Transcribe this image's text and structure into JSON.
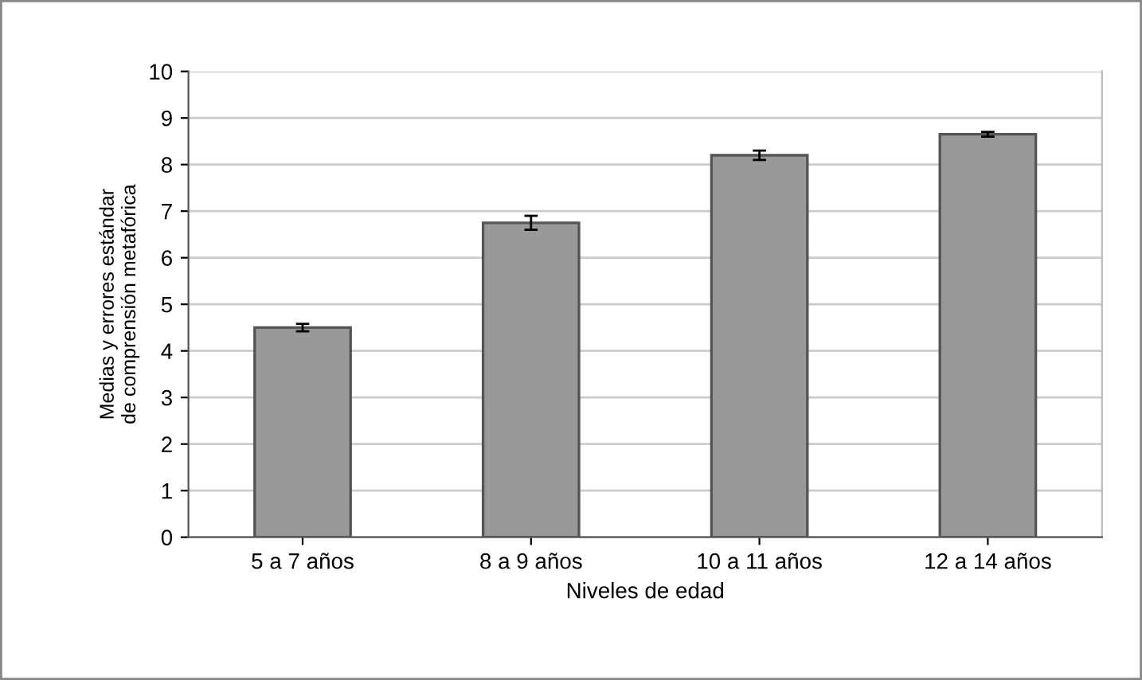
{
  "chart_data": {
    "type": "bar",
    "xlabel": "Niveles de edad",
    "ylabel": "Medias y errores estándar\nde comprensión metafórica",
    "categories": [
      "5 a 7 años",
      "8 a 9 años",
      "10 a 11 años",
      "12 a 14 años"
    ],
    "values": [
      4.5,
      6.75,
      8.2,
      8.65
    ],
    "errors": [
      0.08,
      0.15,
      0.1,
      0.05
    ],
    "color": "#999999",
    "ylim": [
      0,
      10
    ],
    "yticks": [
      0,
      1,
      2,
      3,
      4,
      5,
      6,
      7,
      8,
      9,
      10
    ],
    "grid": "y"
  }
}
